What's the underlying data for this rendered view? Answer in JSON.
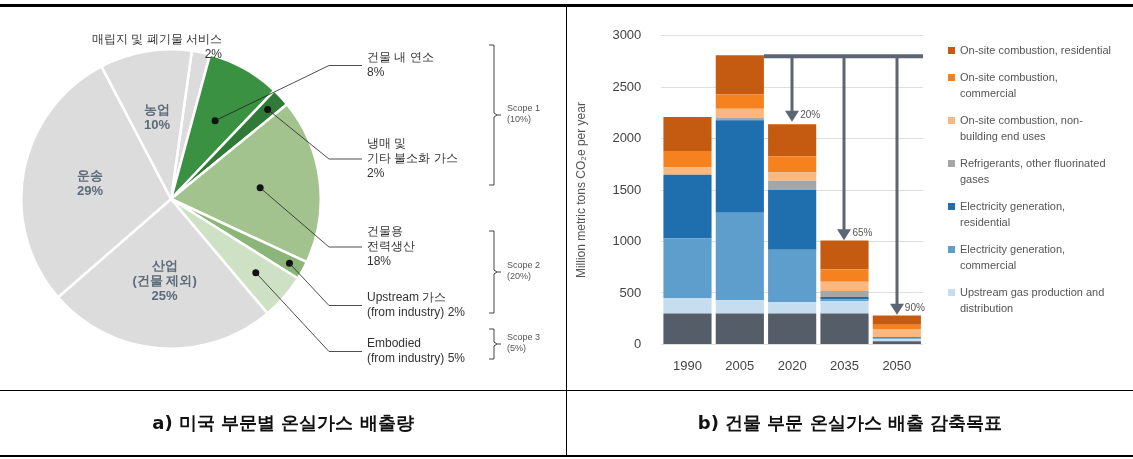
{
  "chart_data": [
    {
      "type": "pie",
      "title": "a) 미국 부문별 온실가스 배출량",
      "categories": [
        "매립지 및 폐기물 서비스",
        "건물 내 연소",
        "냉매 및\n기타 불소화 가스",
        "건물용\n전력생산",
        "Upstream 가스\n(from industry)",
        "Embodied\n(from industry)",
        "산업\n(건물 제외)",
        "운송",
        "농업"
      ],
      "values": [
        2,
        8,
        2,
        18,
        2,
        5,
        25,
        29,
        10
      ],
      "value_labels": [
        "2%",
        "8%",
        "2%",
        "18%",
        "2%",
        "5%",
        "25%",
        "29%",
        "10%"
      ],
      "colors": [
        "#dcdcdc",
        "#3a9142",
        "#2f7a36",
        "#a2c38e",
        "#8cb679",
        "#cfe1c4",
        "#dcdcdc",
        "#dcdcdc",
        "#dcdcdc"
      ],
      "annotations": [
        "Scope 1\n(10%)",
        "Scope 2\n(20%)",
        "Scope 3\n(5%)"
      ]
    },
    {
      "type": "bar",
      "title": "b) 건물 부문 온실가스 배출 감축목표",
      "stacked": true,
      "categories": [
        "1990",
        "2005",
        "2020",
        "2035",
        "2050"
      ],
      "series": [
        {
          "color": "#555d68",
          "values": [
            300,
            300,
            300,
            300,
            30
          ]
        },
        {
          "name": "Upstream gas production and distribution",
          "color": "#c6dcef",
          "values": [
            150,
            130,
            110,
            120,
            20
          ]
        },
        {
          "name": "Electricity generation, commercial",
          "color": "#5e9ecd",
          "values": [
            580,
            850,
            510,
            20,
            10
          ]
        },
        {
          "name": "Electricity generation, residential",
          "color": "#1f6ead",
          "values": [
            620,
            900,
            580,
            20,
            10
          ]
        },
        {
          "name": "Refrigerants, other fluorinated gases",
          "color": "#a6a6a6",
          "values": [
            null,
            20,
            90,
            60,
            null
          ]
        },
        {
          "name": "On-site combustion, non-building end uses",
          "color": "#f9b880",
          "values": [
            70,
            90,
            80,
            90,
            80
          ]
        },
        {
          "name": "On-site combustion, commercial",
          "color": "#f5821f",
          "values": [
            160,
            140,
            160,
            120,
            40
          ]
        },
        {
          "name": "On-site combustion, residential",
          "color": "#c55a11",
          "values": [
            330,
            380,
            310,
            280,
            90
          ]
        }
      ],
      "ylabel": "Million metric tons CO₂e per year",
      "ylim": [
        0,
        3000
      ],
      "yticks": [
        0,
        500,
        1000,
        1500,
        2000,
        2500,
        3000
      ],
      "grid": "y",
      "legend": "right",
      "ref_lines": [
        {
          "axis": "y",
          "value": 2800
        }
      ],
      "annotations": [
        {
          "text": "20%",
          "x": "2020",
          "y": 2150
        },
        {
          "text": "65%",
          "x": "2035",
          "y": 1000
        },
        {
          "text": "90%",
          "x": "2050",
          "y": 275
        }
      ]
    }
  ]
}
